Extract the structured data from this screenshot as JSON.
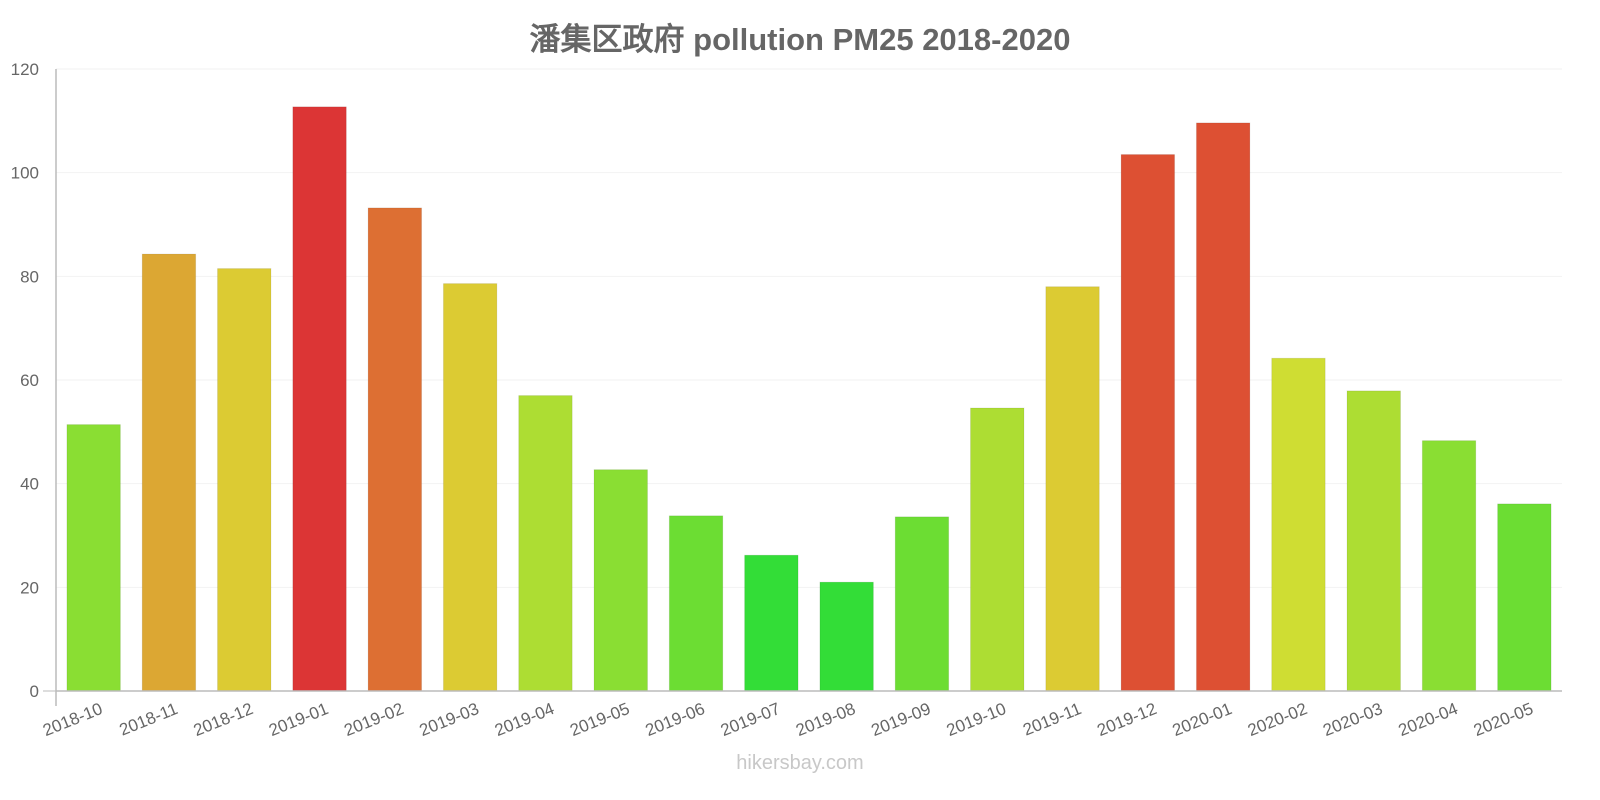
{
  "title": "潘集区政府 pollution PM25 2018-2020",
  "watermark": "hikersbay.com",
  "chart_data": {
    "type": "bar",
    "title": "潘集区政府 pollution PM25 2018-2020",
    "xlabel": "",
    "ylabel": "",
    "ylim": [
      0,
      120
    ],
    "yticks": [
      0,
      20,
      40,
      60,
      80,
      100,
      120
    ],
    "grid": true,
    "legend": null,
    "categories": [
      "2018-10",
      "2018-11",
      "2018-12",
      "2019-01",
      "2019-02",
      "2019-03",
      "2019-04",
      "2019-05",
      "2019-06",
      "2019-07",
      "2019-08",
      "2019-09",
      "2019-10",
      "2019-11",
      "2019-12",
      "2020-01",
      "2020-02",
      "2020-03",
      "2020-04",
      "2020-05"
    ],
    "values": [
      51.4,
      84.3,
      81.5,
      112.7,
      93.2,
      78.6,
      57.0,
      42.7,
      33.8,
      26.2,
      21.0,
      33.6,
      54.6,
      78.0,
      103.5,
      109.6,
      64.2,
      57.9,
      48.3,
      36.1
    ],
    "colors": [
      "#8ade33",
      "#dca733",
      "#dccb33",
      "#dc3535",
      "#dd6f33",
      "#dccb33",
      "#addd33",
      "#8ade33",
      "#6cdd33",
      "#33dd37",
      "#33dd37",
      "#6cdd33",
      "#addd33",
      "#dccb33",
      "#dd5033",
      "#dd5033",
      "#cfdd33",
      "#addd33",
      "#8ade33",
      "#6cdd33"
    ]
  }
}
